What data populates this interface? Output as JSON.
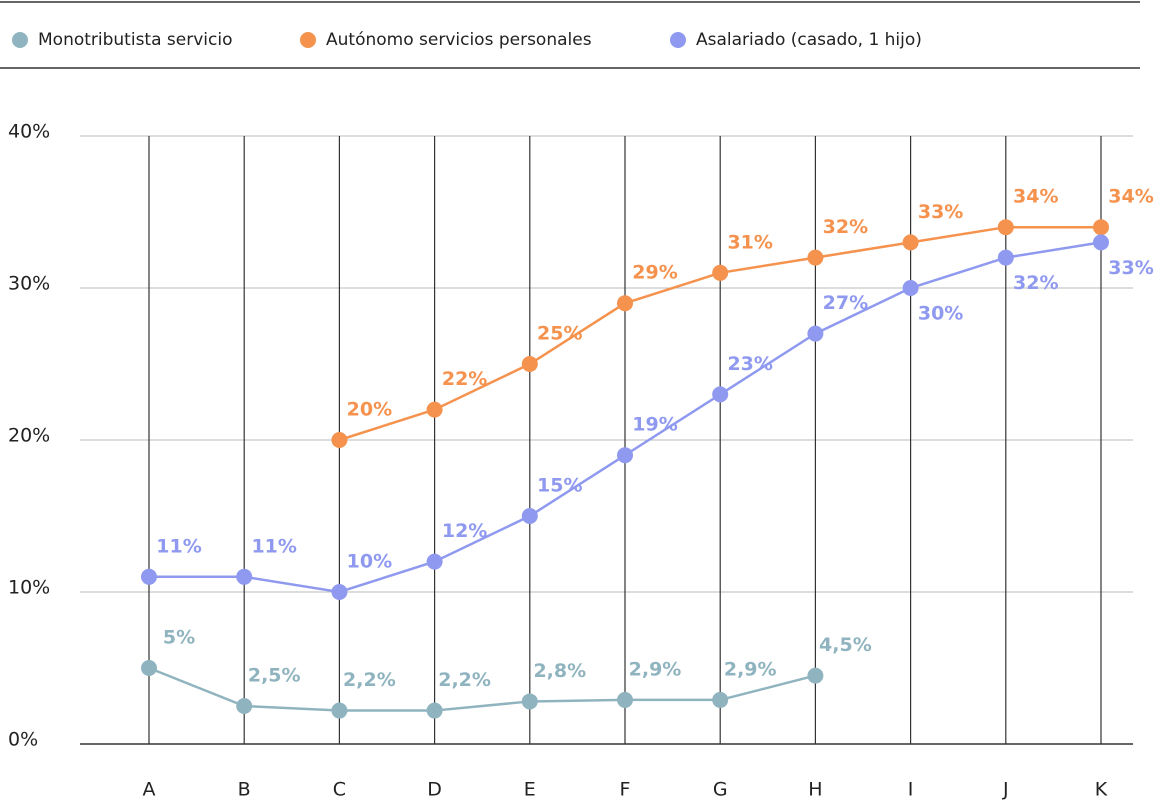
{
  "chart_data": {
    "type": "line",
    "categories": [
      "A",
      "B",
      "C",
      "D",
      "E",
      "F",
      "G",
      "H",
      "I",
      "J",
      "K"
    ],
    "series": [
      {
        "name": "Monotributista servicio",
        "color": "#90b4bf",
        "values": [
          5,
          2.5,
          2.2,
          2.2,
          2.8,
          2.9,
          2.9,
          4.5,
          null,
          null,
          null
        ],
        "value_labels": [
          "5%",
          "2,5%",
          "2,2%",
          "2,2%",
          "2,8%",
          "2,9%",
          "2,9%",
          "4,5%",
          null,
          null,
          null
        ]
      },
      {
        "name": "Autónomo servicios personales",
        "color": "#f5924e",
        "values": [
          null,
          null,
          20,
          22,
          25,
          29,
          31,
          32,
          33,
          34,
          34
        ],
        "value_labels": [
          null,
          null,
          "20%",
          "22%",
          "25%",
          "29%",
          "31%",
          "32%",
          "33%",
          "34%",
          "34%"
        ]
      },
      {
        "name": "Asalariado (casado, 1 hijo)",
        "color": "#8f99ef",
        "values": [
          11,
          11,
          10,
          12,
          15,
          19,
          23,
          27,
          30,
          32,
          33
        ],
        "value_labels": [
          "11%",
          "11%",
          "10%",
          "12%",
          "15%",
          "19%",
          "23%",
          "27%",
          "30%",
          "32%",
          "33%"
        ]
      }
    ],
    "ylim": [
      0,
      40
    ],
    "yticks": [
      {
        "value": 0,
        "label": "0%"
      },
      {
        "value": 10,
        "label": "10%"
      },
      {
        "value": 20,
        "label": "20%"
      },
      {
        "value": 30,
        "label": "30%"
      },
      {
        "value": 40,
        "label": "40%"
      }
    ],
    "grid": true
  }
}
